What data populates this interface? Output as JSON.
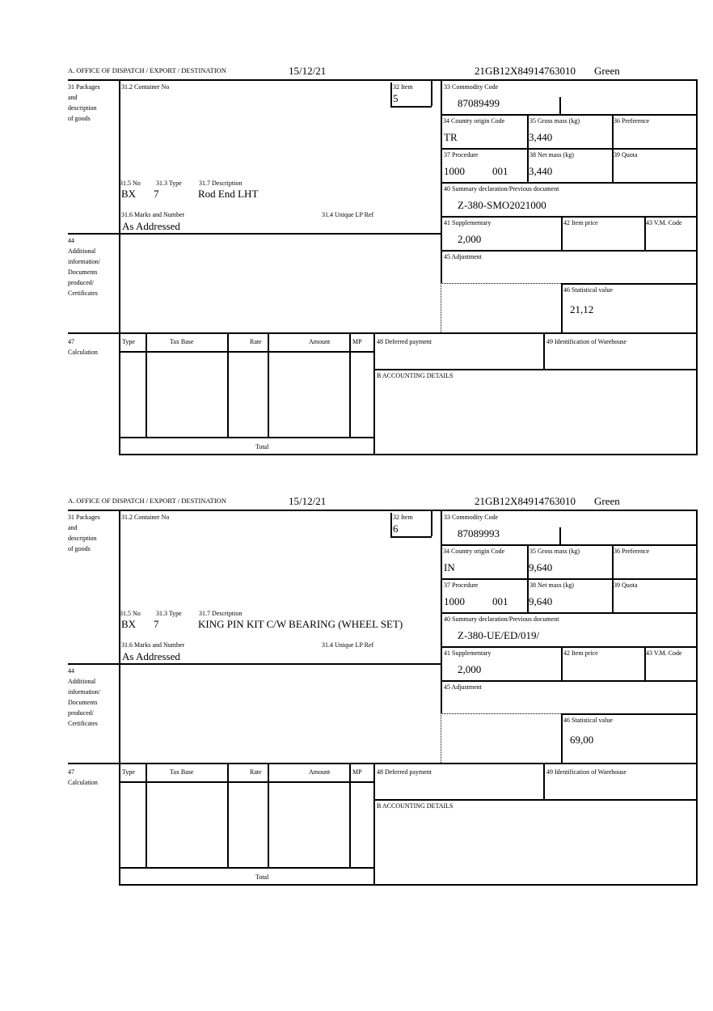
{
  "labels": {
    "header_office": "A. OFFICE OF DISPATCH / EXPORT / DESTINATION",
    "box31": [
      "31 Packages",
      "and",
      "description",
      "of goods"
    ],
    "container_no": "31.2 Container No",
    "item": "32 Item",
    "no": "31.5 No",
    "type": "31.3 Type",
    "description": "31.7 Description",
    "marks": "31.6 Marks and Number",
    "unique_lp": "31.4 Unique LP Ref",
    "commodity": "33 Commodity Code",
    "country": "34 Country origin Code",
    "gross": "35 Gross mass (kg)",
    "preference": "36 Preference",
    "procedure": "37 Procedure",
    "net": "38 Net mass (kg)",
    "quota": "39 Quota",
    "summary": "40 Summary declaration/Previous document",
    "supplementary": "41 Supplementary",
    "item_price": "42 Item price",
    "vm_code": "43 V.M. Code",
    "box44": [
      "44",
      "Additional",
      "information/",
      "Documents",
      "produced/",
      "Certificates"
    ],
    "adjustment": "45 Adjustment",
    "statistical": "46 Statistical value",
    "box47": [
      "47",
      "Calculation"
    ],
    "calc_cols": [
      "Type",
      "Tax Base",
      "Rate",
      "Amount",
      "MP"
    ],
    "total": "Total",
    "deferred": "48 Deferred payment",
    "warehouse": "49 Identification of Warehouse",
    "accounting": "B ACCOUNTING DETAILS"
  },
  "blocks": [
    {
      "date": "15/12/21",
      "reference": "21GB12X84914763010",
      "route": "Green",
      "item": "5",
      "no": "BX",
      "type": "7",
      "description": "Rod End LHT",
      "marks": "As Addressed",
      "commodity": "87089499",
      "country": "TR",
      "gross": "3,440",
      "procedure": "1000",
      "procedure_add": "001",
      "net": "3,440",
      "summary": "Z-380-SMO2021000",
      "supplementary": "2,000",
      "statistical": "21,12"
    },
    {
      "date": "15/12/21",
      "reference": "21GB12X84914763010",
      "route": "Green",
      "item": "6",
      "no": "BX",
      "type": "7",
      "description": "KING PIN KIT C/W BEARING (WHEEL SET)",
      "marks": "As Addressed",
      "commodity": "87089993",
      "country": "IN",
      "gross": "9,640",
      "procedure": "1000",
      "procedure_add": "001",
      "net": "9,640",
      "summary": "Z-380-UE/ED/019/",
      "supplementary": "2,000",
      "statistical": "69,00"
    }
  ]
}
